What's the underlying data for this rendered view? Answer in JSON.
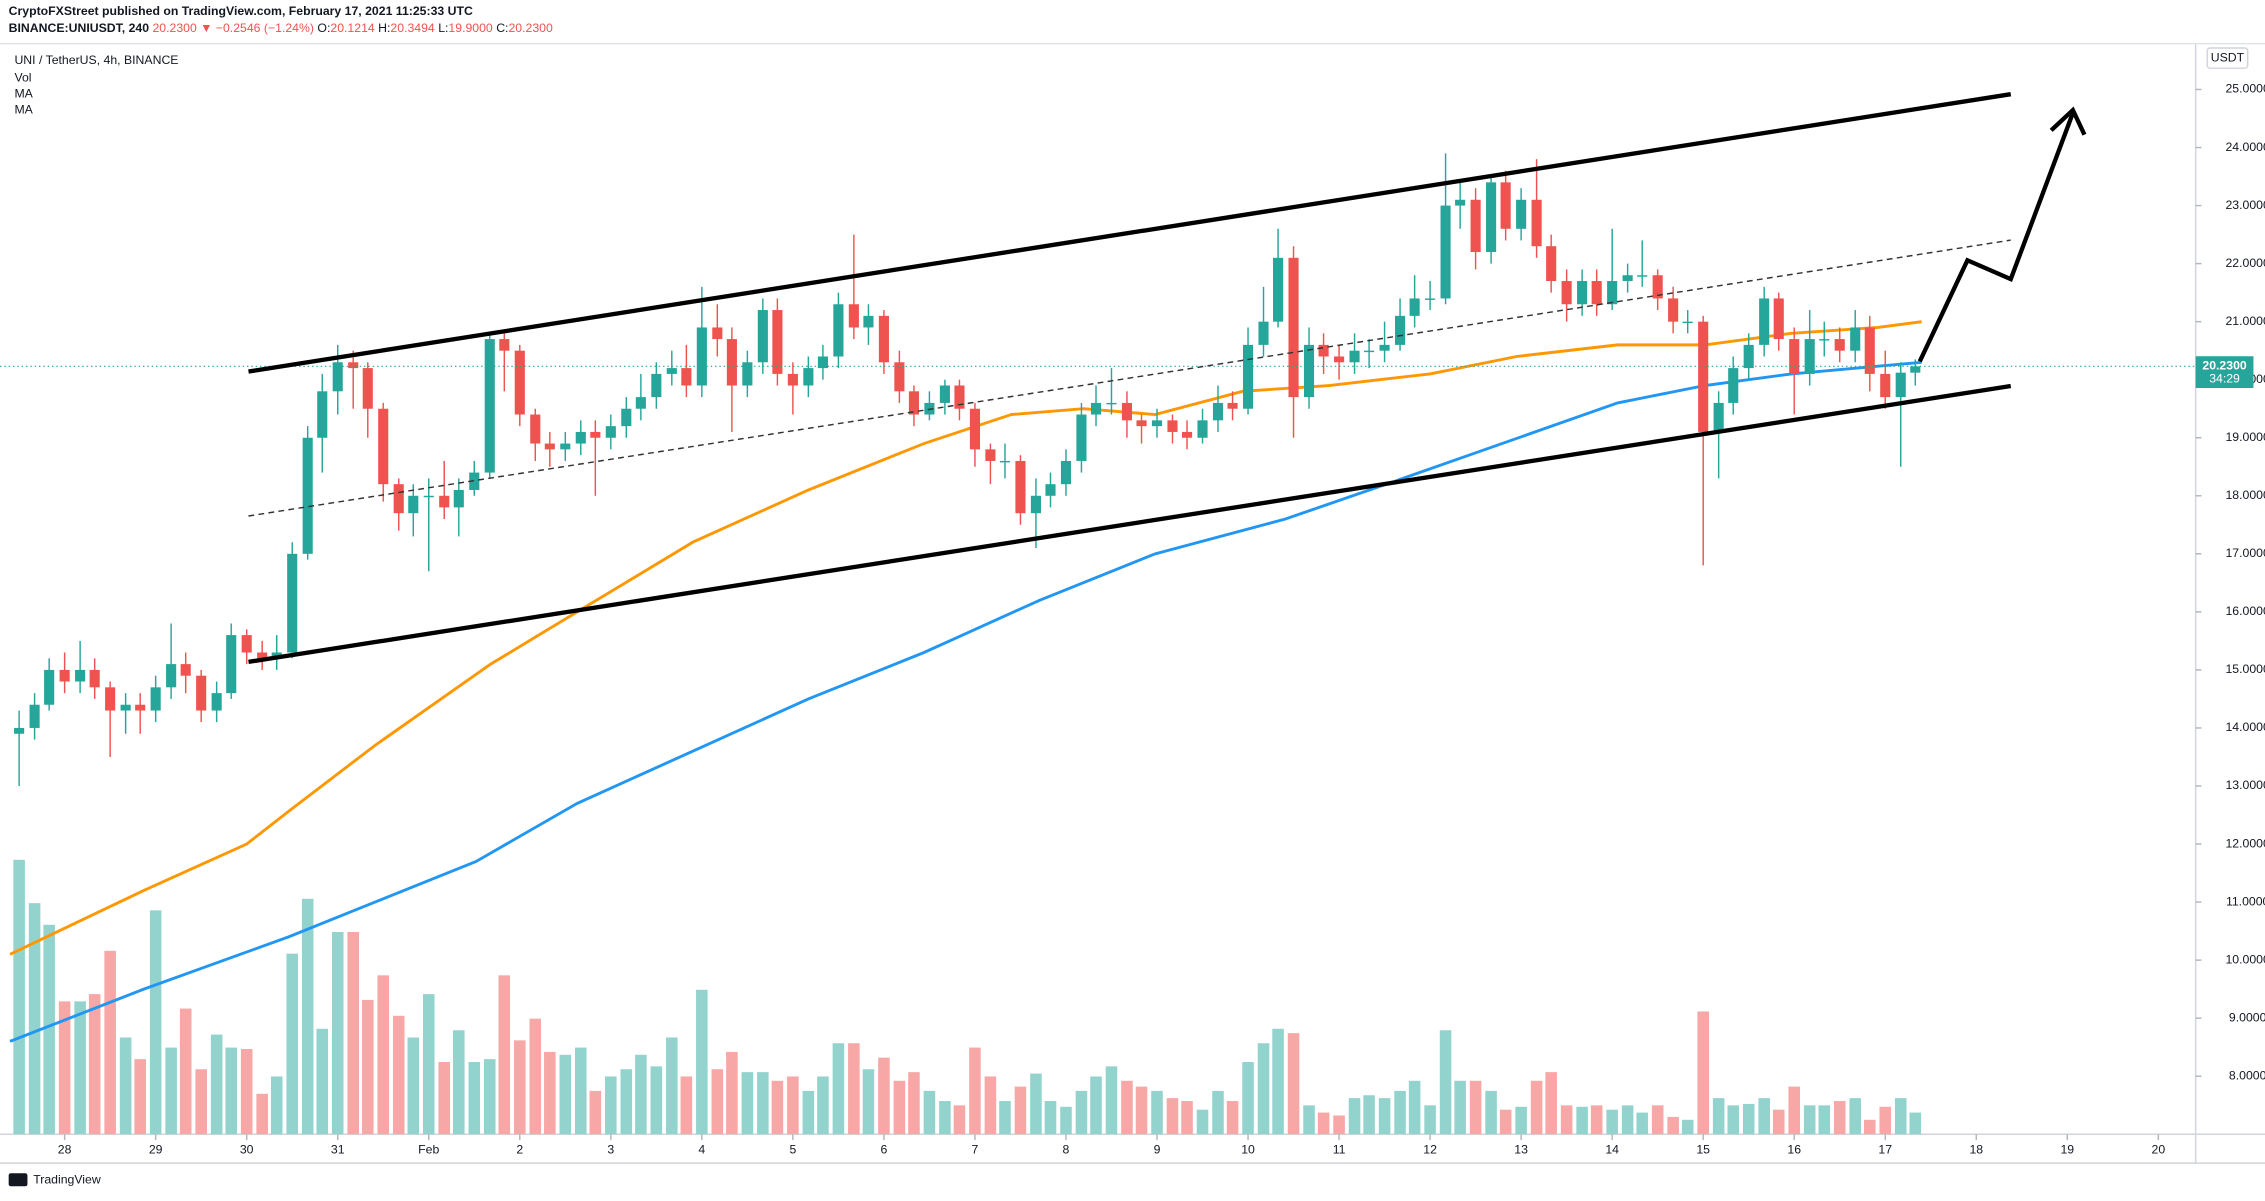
{
  "header": {
    "publisher": "CryptoFXStreet published on TradingView.com, February 17, 2021 11:25:33 UTC",
    "symbol": "BINANCE:UNIUSDT, 240",
    "last": "20.2300",
    "change": "▼ −0.2546 (−1.24%)",
    "o_label": "O:",
    "o": "20.1214",
    "h_label": "H:",
    "h": "20.3494",
    "l_label": "L:",
    "l": "19.9000",
    "c_label": "C:",
    "c": "20.2300"
  },
  "footer": {
    "brand": "TradingView"
  },
  "chart_data": {
    "type": "candlestick",
    "title": "UNI / TetherUS, 4h, BINANCE",
    "volume_name": "Vol",
    "y_unit_label": "USDT",
    "last_price_label": "20.2300",
    "countdown": "34:29",
    "up_color": "#26a69a",
    "down_color": "#ef5350",
    "volume_up_color": "#93d3cd",
    "volume_down_color": "#f6a7a6",
    "grid": false,
    "x": [
      -0.5,
      -0.33,
      -0.17,
      0,
      0.17,
      0.33,
      0.5,
      0.67,
      0.83,
      1,
      1.17,
      1.33,
      1.5,
      1.67,
      1.83,
      2,
      2.17,
      2.33,
      2.5,
      2.67,
      2.83,
      3,
      3.17,
      3.33,
      3.5,
      3.67,
      3.83,
      4,
      4.17,
      4.33,
      4.5,
      4.67,
      4.83,
      5,
      5.17,
      5.33,
      5.5,
      5.67,
      5.83,
      6,
      6.17,
      6.33,
      6.5,
      6.67,
      6.83,
      7,
      7.17,
      7.33,
      7.5,
      7.67,
      7.83,
      8,
      8.17,
      8.33,
      8.5,
      8.67,
      8.83,
      9,
      9.17,
      9.33,
      9.5,
      9.67,
      9.83,
      10,
      10.17,
      10.33,
      10.5,
      10.67,
      10.83,
      11,
      11.17,
      11.33,
      11.5,
      11.67,
      11.83,
      12,
      12.17,
      12.33,
      12.5,
      12.67,
      12.83,
      13,
      13.17,
      13.33,
      13.5,
      13.67,
      13.83,
      14,
      14.17,
      14.33,
      14.5,
      14.67,
      14.83,
      15,
      15.17,
      15.33,
      15.5,
      15.67,
      15.83,
      16,
      16.17,
      16.33,
      16.5,
      16.67,
      16.83,
      17,
      17.17,
      17.33,
      17.5,
      17.67,
      17.83,
      18,
      18.17,
      18.33,
      18.5,
      18.67,
      18.83,
      19,
      19.17,
      19.33,
      19.5,
      19.67,
      19.83,
      20,
      20.17,
      20.33
    ],
    "open": [
      13.9,
      14.0,
      14.4,
      15.0,
      14.8,
      15.0,
      14.7,
      14.3,
      14.4,
      14.3,
      14.7,
      15.1,
      14.9,
      14.3,
      14.6,
      15.6,
      15.3,
      15.2,
      15.3,
      17.0,
      19.0,
      19.8,
      20.3,
      20.2,
      19.5,
      18.2,
      17.7,
      18.0,
      18.0,
      17.8,
      18.1,
      18.4,
      20.7,
      20.5,
      19.4,
      18.9,
      18.8,
      18.9,
      19.1,
      19.0,
      19.2,
      19.5,
      19.7,
      20.1,
      20.2,
      19.9,
      20.9,
      20.7,
      19.9,
      20.3,
      21.2,
      20.1,
      19.9,
      20.2,
      20.4,
      21.3,
      20.9,
      21.1,
      20.3,
      19.8,
      19.4,
      19.6,
      19.9,
      19.5,
      18.8,
      18.6,
      18.6,
      17.7,
      18.0,
      18.2,
      18.6,
      19.4,
      19.6,
      19.6,
      19.3,
      19.2,
      19.3,
      19.1,
      19.0,
      19.3,
      19.6,
      19.5,
      20.6,
      21.0,
      22.1,
      19.7,
      20.6,
      20.4,
      20.3,
      20.5,
      20.5,
      20.6,
      21.1,
      21.4,
      21.4,
      23.0,
      23.1,
      22.2,
      23.4,
      22.6,
      23.1,
      22.3,
      21.7,
      21.3,
      21.7,
      21.3,
      21.7,
      21.8,
      21.8,
      21.4,
      21.0,
      21.0,
      19.1,
      19.6,
      20.2,
      20.6,
      21.4,
      20.7,
      20.1,
      20.7,
      20.7,
      20.5,
      20.9,
      20.1,
      19.7,
      20.1214
    ],
    "high": [
      14.3,
      14.6,
      15.2,
      15.3,
      15.5,
      15.2,
      14.8,
      14.6,
      14.6,
      14.9,
      15.8,
      15.3,
      15.0,
      14.8,
      15.8,
      15.7,
      15.5,
      15.6,
      17.2,
      19.2,
      20.1,
      20.6,
      20.5,
      20.3,
      19.6,
      18.3,
      18.2,
      18.3,
      18.6,
      18.3,
      18.6,
      20.8,
      20.8,
      20.6,
      19.5,
      19.1,
      19.1,
      19.3,
      19.3,
      19.4,
      19.7,
      20.1,
      20.3,
      20.5,
      20.6,
      21.6,
      21.3,
      20.9,
      20.5,
      21.4,
      21.4,
      20.3,
      20.4,
      20.6,
      21.5,
      22.5,
      21.3,
      21.2,
      20.5,
      19.9,
      19.8,
      20.0,
      20.0,
      19.6,
      18.9,
      18.9,
      18.7,
      18.3,
      18.4,
      18.8,
      19.6,
      19.9,
      20.2,
      19.8,
      19.4,
      19.5,
      19.4,
      19.3,
      19.5,
      19.9,
      19.8,
      20.9,
      21.6,
      22.6,
      22.3,
      20.9,
      20.8,
      20.6,
      20.8,
      20.7,
      21.0,
      21.4,
      21.8,
      21.7,
      23.9,
      23.4,
      23.3,
      23.5,
      23.6,
      23.3,
      23.8,
      22.5,
      21.9,
      21.9,
      21.9,
      22.6,
      22.0,
      22.4,
      21.9,
      21.6,
      21.2,
      21.1,
      19.8,
      20.4,
      20.8,
      21.6,
      21.5,
      20.9,
      21.2,
      21.0,
      20.9,
      21.2,
      21.1,
      20.5,
      20.3,
      20.3494
    ],
    "low": [
      13.0,
      13.8,
      14.3,
      14.6,
      14.6,
      14.5,
      13.5,
      13.9,
      13.9,
      14.1,
      14.5,
      14.6,
      14.1,
      14.1,
      14.5,
      15.1,
      15.0,
      15.0,
      15.2,
      16.9,
      18.4,
      19.4,
      19.5,
      19.0,
      17.9,
      17.4,
      17.3,
      16.7,
      17.6,
      17.3,
      18.0,
      18.3,
      19.8,
      19.2,
      18.6,
      18.5,
      18.6,
      18.7,
      18.0,
      18.8,
      19.0,
      19.3,
      19.5,
      19.9,
      19.7,
      19.7,
      20.4,
      19.1,
      19.7,
      20.1,
      19.9,
      19.4,
      19.7,
      20.0,
      20.2,
      20.7,
      20.6,
      20.1,
      19.6,
      19.2,
      19.3,
      19.4,
      19.3,
      18.5,
      18.2,
      18.3,
      17.5,
      17.1,
      17.8,
      18.0,
      18.4,
      19.2,
      19.4,
      19.0,
      18.9,
      19.0,
      18.9,
      18.8,
      18.9,
      19.1,
      19.3,
      19.4,
      20.4,
      20.9,
      19.0,
      19.5,
      20.1,
      20.0,
      20.1,
      20.2,
      20.3,
      20.5,
      20.9,
      21.2,
      21.3,
      22.6,
      21.9,
      22.0,
      22.4,
      22.4,
      22.1,
      21.5,
      21.0,
      21.1,
      21.1,
      21.2,
      21.5,
      21.6,
      21.2,
      20.8,
      20.8,
      16.8,
      18.3,
      19.4,
      20.0,
      20.4,
      20.5,
      19.4,
      19.9,
      20.4,
      20.3,
      20.3,
      19.8,
      19.5,
      18.5,
      19.9
    ],
    "close": [
      14.0,
      14.4,
      15.0,
      14.8,
      15.0,
      14.7,
      14.3,
      14.4,
      14.3,
      14.7,
      15.1,
      14.9,
      14.3,
      14.6,
      15.6,
      15.3,
      15.2,
      15.3,
      17.0,
      19.0,
      19.8,
      20.3,
      20.2,
      19.5,
      18.2,
      17.7,
      18.0,
      18.0,
      17.8,
      18.1,
      18.4,
      20.7,
      20.5,
      19.4,
      18.9,
      18.8,
      18.9,
      19.1,
      19.0,
      19.2,
      19.5,
      19.7,
      20.1,
      20.2,
      19.9,
      20.9,
      20.7,
      19.9,
      20.3,
      21.2,
      20.1,
      19.9,
      20.2,
      20.4,
      21.3,
      20.9,
      21.1,
      20.3,
      19.8,
      19.4,
      19.6,
      19.9,
      19.5,
      18.8,
      18.6,
      18.6,
      17.7,
      18.0,
      18.2,
      18.6,
      19.4,
      19.6,
      19.6,
      19.3,
      19.2,
      19.3,
      19.1,
      19.0,
      19.3,
      19.6,
      19.5,
      20.6,
      21.0,
      22.1,
      19.7,
      20.6,
      20.4,
      20.3,
      20.5,
      20.5,
      20.6,
      21.1,
      21.4,
      21.4,
      23.0,
      23.1,
      22.2,
      23.4,
      22.6,
      23.1,
      22.3,
      21.7,
      21.3,
      21.7,
      21.3,
      21.7,
      21.8,
      21.8,
      21.4,
      21.0,
      21.0,
      19.1,
      19.6,
      20.2,
      20.6,
      21.4,
      20.7,
      20.1,
      20.7,
      20.7,
      20.5,
      20.9,
      20.1,
      19.7,
      20.1214,
      20.23
    ],
    "volume": [
      190,
      160,
      145,
      92,
      92,
      97,
      127,
      67,
      52,
      155,
      60,
      87,
      45,
      69,
      60,
      59,
      28,
      40,
      125,
      163,
      73,
      140,
      140,
      93,
      110,
      82,
      67,
      97,
      50,
      72,
      50,
      52,
      110,
      65,
      80,
      57,
      55,
      60,
      30,
      40,
      45,
      55,
      47,
      67,
      40,
      100,
      45,
      57,
      43,
      43,
      37,
      40,
      30,
      40,
      63,
      63,
      45,
      53,
      37,
      43,
      30,
      23,
      20,
      60,
      40,
      23,
      33,
      42,
      23,
      19,
      30,
      40,
      47,
      37,
      33,
      30,
      25,
      23,
      17,
      30,
      23,
      50,
      63,
      73,
      70,
      20,
      15,
      13,
      25,
      27,
      25,
      30,
      37,
      20,
      72,
      37,
      37,
      30,
      17,
      19,
      37,
      43,
      20,
      19,
      20,
      17,
      20,
      15,
      20,
      12,
      10,
      85,
      25,
      20,
      21,
      25,
      17,
      33,
      20,
      20,
      23,
      25,
      10,
      19,
      25,
      15
    ],
    "series": [
      {
        "name": "MA",
        "color": "#ff9800",
        "x": [
          -0.6,
          0.87,
          2.0,
          2.49,
          3.41,
          4.68,
          5.63,
          6.9,
          8.17,
          9.44,
          10.4,
          11.19,
          11.98,
          12.94,
          13.89,
          15.0,
          15.95,
          17.06,
          18.02,
          18.97,
          19.92,
          20.4
        ],
        "values": [
          10.1,
          11.2,
          12.0,
          12.6,
          13.7,
          15.1,
          16.0,
          17.2,
          18.1,
          18.9,
          19.4,
          19.5,
          19.4,
          19.8,
          19.9,
          20.1,
          20.4,
          20.6,
          20.6,
          20.8,
          20.9,
          21.0
        ]
      },
      {
        "name": "MA",
        "color": "#2196f3",
        "x": [
          -0.6,
          0.87,
          2.46,
          3.41,
          4.52,
          5.63,
          6.9,
          8.17,
          9.44,
          10.71,
          11.98,
          13.41,
          14.52,
          15.79,
          17.06,
          18.02,
          18.97,
          20.4
        ],
        "values": [
          8.6,
          9.5,
          10.4,
          11.0,
          11.7,
          12.7,
          13.6,
          14.5,
          15.3,
          16.2,
          17.0,
          17.6,
          18.2,
          18.9,
          19.6,
          19.9,
          20.1,
          20.3
        ]
      }
    ],
    "xlim": [
      -0.71,
      23.41
    ],
    "xticks": [
      {
        "value": 0,
        "label": "28"
      },
      {
        "value": 1,
        "label": "29"
      },
      {
        "value": 2,
        "label": "30"
      },
      {
        "value": 3,
        "label": "31"
      },
      {
        "value": 4,
        "label": "Feb"
      },
      {
        "value": 5,
        "label": "2"
      },
      {
        "value": 6,
        "label": "3"
      },
      {
        "value": 7,
        "label": "4"
      },
      {
        "value": 8,
        "label": "5"
      },
      {
        "value": 9,
        "label": "6"
      },
      {
        "value": 10,
        "label": "7"
      },
      {
        "value": 11,
        "label": "8"
      },
      {
        "value": 12,
        "label": "9"
      },
      {
        "value": 13,
        "label": "10"
      },
      {
        "value": 14,
        "label": "11"
      },
      {
        "value": 15,
        "label": "12"
      },
      {
        "value": 16,
        "label": "13"
      },
      {
        "value": 17,
        "label": "14"
      },
      {
        "value": 18,
        "label": "15"
      },
      {
        "value": 19,
        "label": "16"
      },
      {
        "value": 20,
        "label": "17"
      },
      {
        "value": 21,
        "label": "18"
      },
      {
        "value": 22,
        "label": "19"
      },
      {
        "value": 23,
        "label": "20"
      }
    ],
    "ylim": [
      7.0,
      25.79
    ],
    "yticks": [
      {
        "value": 8,
        "label": "8.0000"
      },
      {
        "value": 9,
        "label": "9.0000"
      },
      {
        "value": 10,
        "label": "10.0000"
      },
      {
        "value": 11,
        "label": "11.0000"
      },
      {
        "value": 12,
        "label": "12.0000"
      },
      {
        "value": 13,
        "label": "13.0000"
      },
      {
        "value": 14,
        "label": "14.0000"
      },
      {
        "value": 15,
        "label": "15.0000"
      },
      {
        "value": 16,
        "label": "16.0000"
      },
      {
        "value": 17,
        "label": "17.0000"
      },
      {
        "value": 18,
        "label": "18.0000"
      },
      {
        "value": 19,
        "label": "19.0000"
      },
      {
        "value": 20,
        "label": "20.0000"
      },
      {
        "value": 21,
        "label": "21.0000"
      },
      {
        "value": 22,
        "label": "22.0000"
      },
      {
        "value": 23,
        "label": "23.0000"
      },
      {
        "value": 24,
        "label": "24.0000"
      },
      {
        "value": 25,
        "label": "25.0000"
      }
    ]
  }
}
